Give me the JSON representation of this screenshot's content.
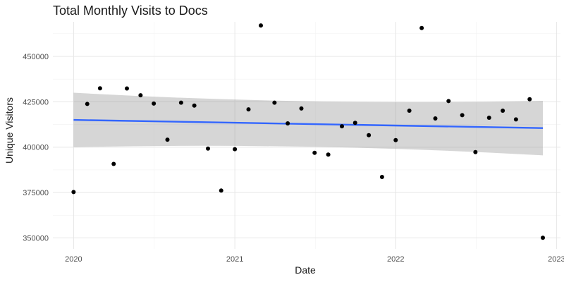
{
  "chart_data": {
    "type": "scatter",
    "title": "Total Monthly Visits to Docs",
    "xlabel": "Date",
    "ylabel": "Unique Visitors",
    "x_ticks": [
      "2020",
      "2021",
      "2022",
      "2023"
    ],
    "y_ticks": [
      "350000",
      "375000",
      "400000",
      "425000",
      "450000"
    ],
    "xlim": [
      "2019-11-15",
      "2023-01-10"
    ],
    "ylim": [
      344000,
      469000
    ],
    "grid": true,
    "colors": {
      "points": "#000000",
      "trend_line": "#3366ff",
      "confidence_band": "#999999",
      "grid_major": "#e6e6e6",
      "grid_minor": "#f2f2f2"
    },
    "points": [
      {
        "x": "2020-01-01",
        "y": 375300
      },
      {
        "x": "2020-02-01",
        "y": 423800
      },
      {
        "x": "2020-03-01",
        "y": 432400
      },
      {
        "x": "2020-04-01",
        "y": 390800
      },
      {
        "x": "2020-05-01",
        "y": 432300
      },
      {
        "x": "2020-06-01",
        "y": 428600
      },
      {
        "x": "2020-07-01",
        "y": 424000
      },
      {
        "x": "2020-08-01",
        "y": 404100
      },
      {
        "x": "2020-09-01",
        "y": 424500
      },
      {
        "x": "2020-10-01",
        "y": 422900
      },
      {
        "x": "2020-11-01",
        "y": 399200
      },
      {
        "x": "2020-12-01",
        "y": 376100
      },
      {
        "x": "2021-01-01",
        "y": 398900
      },
      {
        "x": "2021-02-01",
        "y": 420800
      },
      {
        "x": "2021-03-01",
        "y": 467000
      },
      {
        "x": "2021-04-01",
        "y": 424500
      },
      {
        "x": "2021-05-01",
        "y": 413100
      },
      {
        "x": "2021-06-01",
        "y": 421300
      },
      {
        "x": "2021-07-01",
        "y": 396900
      },
      {
        "x": "2021-08-01",
        "y": 395900
      },
      {
        "x": "2021-09-01",
        "y": 411500
      },
      {
        "x": "2021-10-01",
        "y": 413400
      },
      {
        "x": "2021-11-01",
        "y": 406600
      },
      {
        "x": "2021-12-01",
        "y": 383600
      },
      {
        "x": "2022-01-01",
        "y": 403900
      },
      {
        "x": "2022-02-01",
        "y": 420100
      },
      {
        "x": "2022-03-01",
        "y": 465600
      },
      {
        "x": "2022-04-01",
        "y": 415800
      },
      {
        "x": "2022-05-01",
        "y": 425400
      },
      {
        "x": "2022-06-01",
        "y": 417600
      },
      {
        "x": "2022-07-01",
        "y": 397300
      },
      {
        "x": "2022-08-01",
        "y": 416200
      },
      {
        "x": "2022-09-01",
        "y": 420100
      },
      {
        "x": "2022-10-01",
        "y": 415300
      },
      {
        "x": "2022-11-01",
        "y": 426400
      },
      {
        "x": "2022-12-01",
        "y": 350100
      }
    ],
    "trend": {
      "method": "linear",
      "x": [
        "2020-01-01",
        "2022-12-01"
      ],
      "y": [
        415000,
        410500
      ],
      "ci_upper": [
        430000,
        425500
      ],
      "ci_lower": [
        400000,
        395500
      ]
    }
  }
}
